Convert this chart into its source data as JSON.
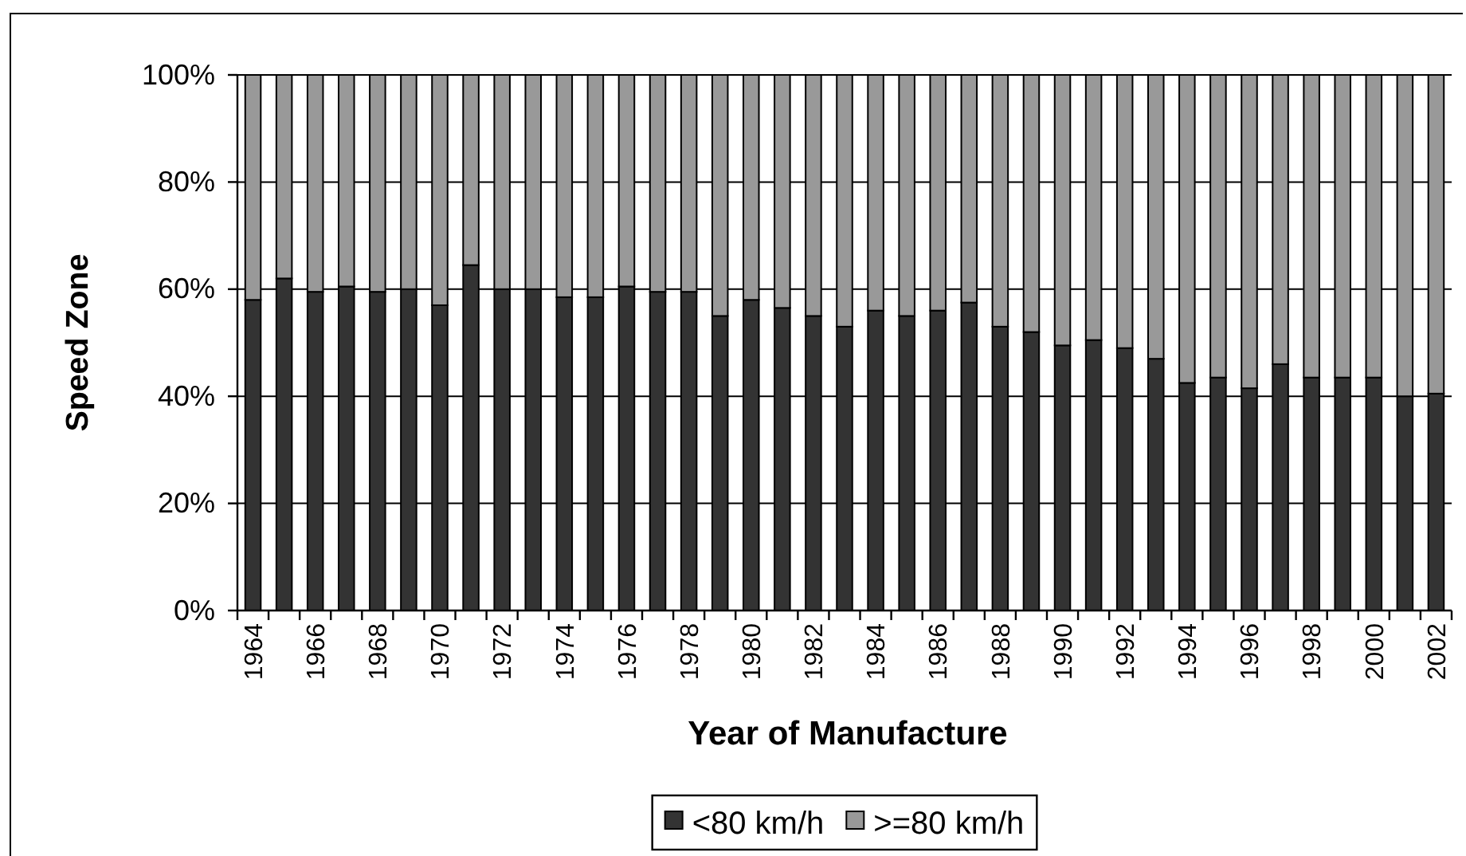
{
  "chart_data": {
    "type": "bar",
    "stacked": true,
    "xlabel": "Year of Manufacture",
    "ylabel": "Speed Zone",
    "categories": [
      "1964",
      null,
      "1966",
      null,
      "1968",
      null,
      "1970",
      null,
      "1972",
      null,
      "1974",
      null,
      "1976",
      null,
      "1978",
      null,
      "1980",
      null,
      "1982",
      null,
      "1984",
      null,
      "1986",
      null,
      "1988",
      null,
      "1990",
      null,
      "1992",
      null,
      "1994",
      null,
      "1996",
      null,
      "1998",
      null,
      "2000",
      null,
      "2002"
    ],
    "series": [
      {
        "name": "<80 km/h",
        "color": "#333333",
        "values": [
          58,
          62,
          59.5,
          60.5,
          59.5,
          60,
          57,
          64.5,
          60,
          60,
          58.5,
          58.5,
          60.5,
          59.5,
          59.5,
          55,
          58,
          56.5,
          55,
          53,
          56,
          55,
          56,
          57.5,
          53,
          52,
          49.5,
          50.5,
          49,
          47,
          42.5,
          43.5,
          41.5,
          46,
          43.5,
          43.5,
          43.5,
          40,
          40.5
        ]
      },
      {
        "name": ">=80 km/h",
        "color": "#999999",
        "values": [
          42,
          38,
          40.5,
          39.5,
          40.5,
          40,
          43,
          35.5,
          40,
          40,
          41.5,
          41.5,
          39.5,
          40.5,
          40.5,
          45,
          42,
          43.5,
          45,
          47,
          44,
          45,
          44,
          42.5,
          47,
          48,
          50.5,
          49.5,
          51,
          53,
          57.5,
          56.5,
          58.5,
          54,
          56.5,
          56.5,
          56.5,
          60,
          59.5
        ]
      }
    ],
    "ylim": [
      0,
      100
    ],
    "yticks": [
      {
        "value": 0,
        "label": "0%"
      },
      {
        "value": 20,
        "label": "20%"
      },
      {
        "value": 40,
        "label": "40%"
      },
      {
        "value": 60,
        "label": "60%"
      },
      {
        "value": 80,
        "label": "80%"
      },
      {
        "value": 100,
        "label": "100%"
      }
    ],
    "grid": "y",
    "legend": "bottom"
  }
}
